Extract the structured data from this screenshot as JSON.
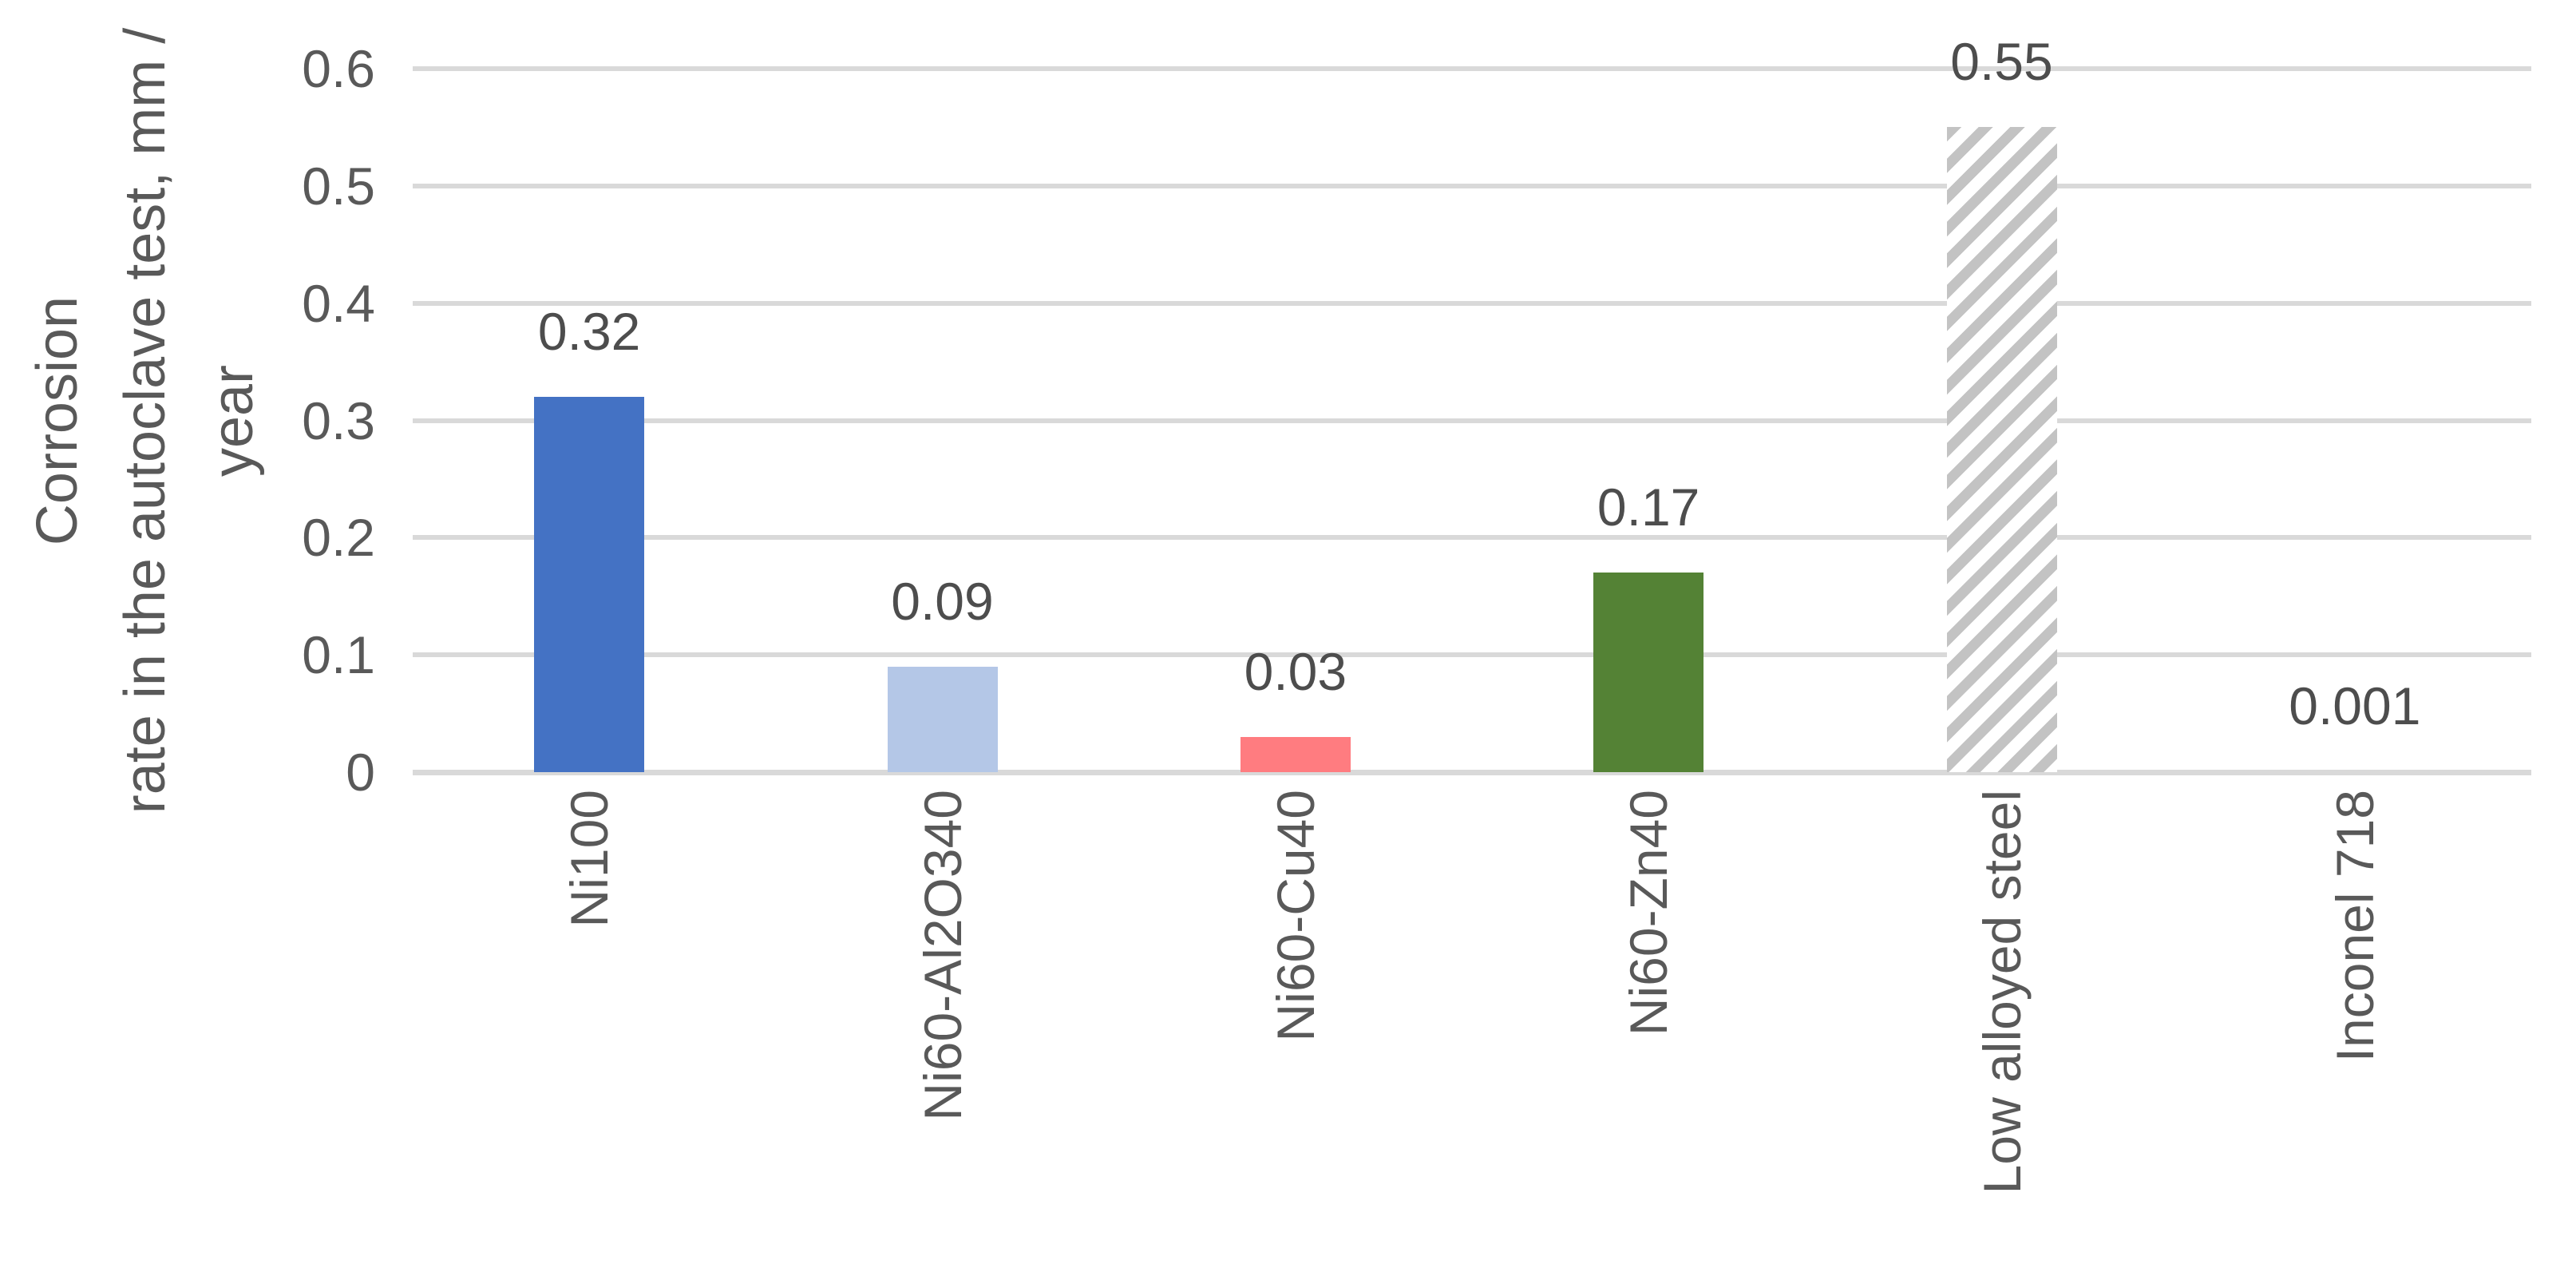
{
  "chart_data": {
    "type": "bar",
    "title": "",
    "xlabel": "",
    "ylabel": "Corrosion rate in the autoclave test, mm / year",
    "ylabel_lines": [
      "Corrosion",
      "rate in the autoclave test, mm /",
      "year"
    ],
    "categories": [
      "Ni100",
      "Ni60-Al2O340",
      "Ni60-Cu40",
      "Ni60-Zn40",
      "Low alloyed steel",
      "Inconel 718"
    ],
    "values": [
      0.32,
      0.09,
      0.03,
      0.17,
      0.55,
      0.001
    ],
    "value_labels": [
      "0.32",
      "0.09",
      "0.03",
      "0.17",
      "0.55",
      "0.001"
    ],
    "bar_fills": [
      "#4472C4",
      "#B4C7E7",
      "#FF7C80",
      "#548235",
      "hatch",
      "none"
    ],
    "hatch_stripe_color": "#C3C3C3",
    "hatch_background_color": "#FFFFFF",
    "ylim": [
      0,
      0.6
    ],
    "yticks": [
      {
        "value": 0.6,
        "label": "0.6"
      },
      {
        "value": 0.5,
        "label": "0.5"
      },
      {
        "value": 0.4,
        "label": "0.4"
      },
      {
        "value": 0.3,
        "label": "0.3"
      },
      {
        "value": 0.2,
        "label": "0.2"
      },
      {
        "value": 0.1,
        "label": "0.1"
      },
      {
        "value": 0,
        "label": "0"
      }
    ],
    "grid": "horizontal",
    "gridline_color": "#D9D9D9",
    "axis_line_color": "#D9D9D9",
    "text_color": "#595959",
    "legend": "none"
  }
}
